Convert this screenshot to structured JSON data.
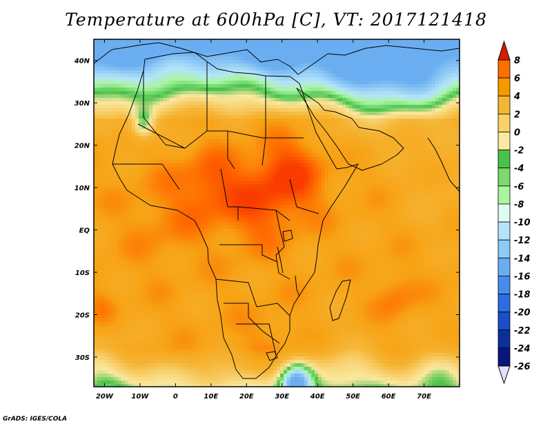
{
  "title": "Temperature at 600hPa [C], VT: 2017121418",
  "credit": "GrADS: IGES/COLA",
  "chart_data": {
    "type": "heatmap",
    "title": "Temperature at 600hPa [C], VT: 2017121418",
    "units": "C",
    "valid_time": "2017121418",
    "lon_range": [
      -23,
      80
    ],
    "lat_range": [
      -37,
      45
    ],
    "x_tick_labels": [
      "20W",
      "10W",
      "0",
      "10E",
      "20E",
      "30E",
      "40E",
      "50E",
      "60E",
      "70E"
    ],
    "x_tick_values": [
      -20,
      -10,
      0,
      10,
      20,
      30,
      40,
      50,
      60,
      70
    ],
    "y_tick_labels": [
      "40N",
      "30N",
      "20N",
      "10N",
      "EQ",
      "10S",
      "20S",
      "30S"
    ],
    "y_tick_values": [
      40,
      30,
      20,
      10,
      0,
      -10,
      -20,
      -30
    ],
    "colorbar": {
      "labels": [
        "8",
        "6",
        "4",
        "2",
        "0",
        "-2",
        "-4",
        "-6",
        "-8",
        "-10",
        "-12",
        "-14",
        "-16",
        "-18",
        "-20",
        "-22",
        "-24",
        "-26"
      ],
      "colors": [
        "#fa3c00",
        "#ff6e00",
        "#f79a00",
        "#f5b535",
        "#fad165",
        "#fae9a0",
        "#47c24b",
        "#7ada6e",
        "#aaf5a0",
        "#e0fbf2",
        "#b3e4fa",
        "#8ecaf6",
        "#6aaef1",
        "#4a8ced",
        "#2d6de1",
        "#1a4dc7",
        "#0d2f9c",
        "#09167a"
      ],
      "top_arrow_color": "#d41e00",
      "bottom_arrow_color": "#e4defa"
    },
    "colormap_stops": [
      [
        -14,
        "#6aaef1"
      ],
      [
        -10,
        "#b3e4fa"
      ],
      [
        -8,
        "#aaf5a0"
      ],
      [
        -6,
        "#47c24b"
      ],
      [
        -4,
        "#fae9a0"
      ],
      [
        0,
        "#f5b535"
      ],
      [
        3,
        "#f7a214"
      ],
      [
        5,
        "#ff6e00"
      ],
      [
        7,
        "#fa3c00"
      ]
    ],
    "field_features": [
      {
        "lon": 32,
        "lat": 13,
        "amp": 4.0,
        "s": 7
      },
      {
        "lon": 10,
        "lat": 11,
        "amp": 3.0,
        "s": 6
      },
      {
        "lon": 22,
        "lat": 5,
        "amp": 2.5,
        "s": 7
      },
      {
        "lon": -3,
        "lat": 3,
        "amp": 1.5,
        "s": 8
      },
      {
        "lon": 62,
        "lat": -16,
        "amp": 2.0,
        "s": 4
      },
      {
        "lon": -21,
        "lat": -18,
        "amp": 1.5,
        "s": 3
      },
      {
        "lon": 26,
        "lat": -26,
        "amp": 1.0,
        "s": 6
      },
      {
        "lon": -9,
        "lat": 25,
        "amp": -8.0,
        "s": 2.5
      },
      {
        "lon": 34,
        "lat": -36,
        "amp": -12.0,
        "s": 3
      },
      {
        "lon": 55,
        "lat": 38,
        "amp": -7.0,
        "s": 9
      },
      {
        "lon": 70,
        "lat": 35,
        "amp": -4.0,
        "s": 7
      },
      {
        "lon": 30,
        "lat": 42,
        "amp": -4.0,
        "s": 7
      },
      {
        "lon": -15,
        "lat": 40,
        "amp": -3.0,
        "s": 8
      },
      {
        "lon": 48,
        "lat": -33,
        "amp": -2.5,
        "s": 7
      },
      {
        "lon": -20,
        "lat": -33,
        "amp": -3.0,
        "s": 6
      },
      {
        "lon": 75,
        "lat": 10,
        "amp": -1.5,
        "s": 8
      },
      {
        "lon": 75,
        "lat": -33,
        "amp": -2.5,
        "s": 6
      }
    ]
  }
}
